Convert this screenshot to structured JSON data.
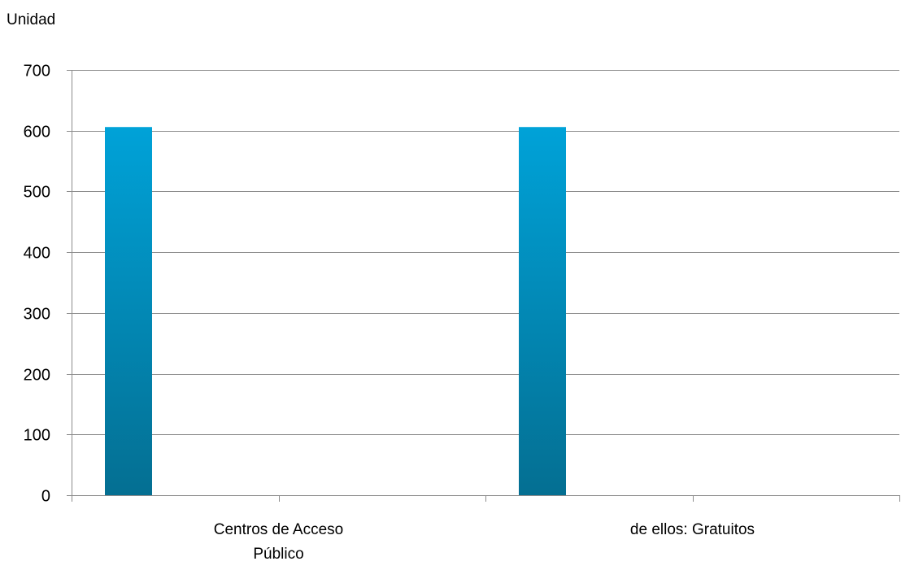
{
  "chart_data": {
    "type": "bar",
    "unit_label": "Unidad",
    "categories": [
      [
        "Centros de Acceso",
        "Público"
      ],
      [
        "de ellos: Gratuitos"
      ]
    ],
    "series": [
      {
        "values": [
          606,
          606
        ],
        "color": "#0a95c4"
      }
    ],
    "ylim": [
      0,
      700
    ],
    "yticks": [
      0,
      100,
      200,
      300,
      400,
      500,
      600,
      700
    ],
    "grid": true,
    "legend": "none",
    "colors": {
      "bar_top": "#00a2d8",
      "bar_bottom": "#046f92",
      "gridline": "#8c8c8c",
      "axis": "#8c8c8c"
    }
  }
}
